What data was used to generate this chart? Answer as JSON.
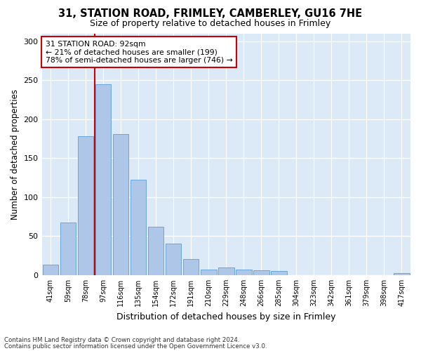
{
  "title_line1": "31, STATION ROAD, FRIMLEY, CAMBERLEY, GU16 7HE",
  "title_line2": "Size of property relative to detached houses in Frimley",
  "xlabel": "Distribution of detached houses by size in Frimley",
  "ylabel": "Number of detached properties",
  "categories": [
    "41sqm",
    "59sqm",
    "78sqm",
    "97sqm",
    "116sqm",
    "135sqm",
    "154sqm",
    "172sqm",
    "191sqm",
    "210sqm",
    "229sqm",
    "248sqm",
    "266sqm",
    "285sqm",
    "304sqm",
    "323sqm",
    "342sqm",
    "361sqm",
    "379sqm",
    "398sqm",
    "417sqm"
  ],
  "values": [
    13,
    67,
    178,
    245,
    181,
    122,
    62,
    40,
    21,
    7,
    10,
    7,
    6,
    5,
    0,
    0,
    0,
    0,
    0,
    0,
    3
  ],
  "bar_color": "#aec6e8",
  "bar_edge_color": "#5a9fd4",
  "vline_xindex": 2.5,
  "vline_color": "#cc0000",
  "annotation_text": "31 STATION ROAD: 92sqm\n← 21% of detached houses are smaller (199)\n78% of semi-detached houses are larger (746) →",
  "annotation_box_color": "#ffffff",
  "annotation_box_edge": "#cc0000",
  "ylim": [
    0,
    310
  ],
  "yticks": [
    0,
    50,
    100,
    150,
    200,
    250,
    300
  ],
  "bg_color": "#dce9f7",
  "grid_color": "#ffffff",
  "footer_line1": "Contains HM Land Registry data © Crown copyright and database right 2024.",
  "footer_line2": "Contains public sector information licensed under the Open Government Licence v3.0."
}
